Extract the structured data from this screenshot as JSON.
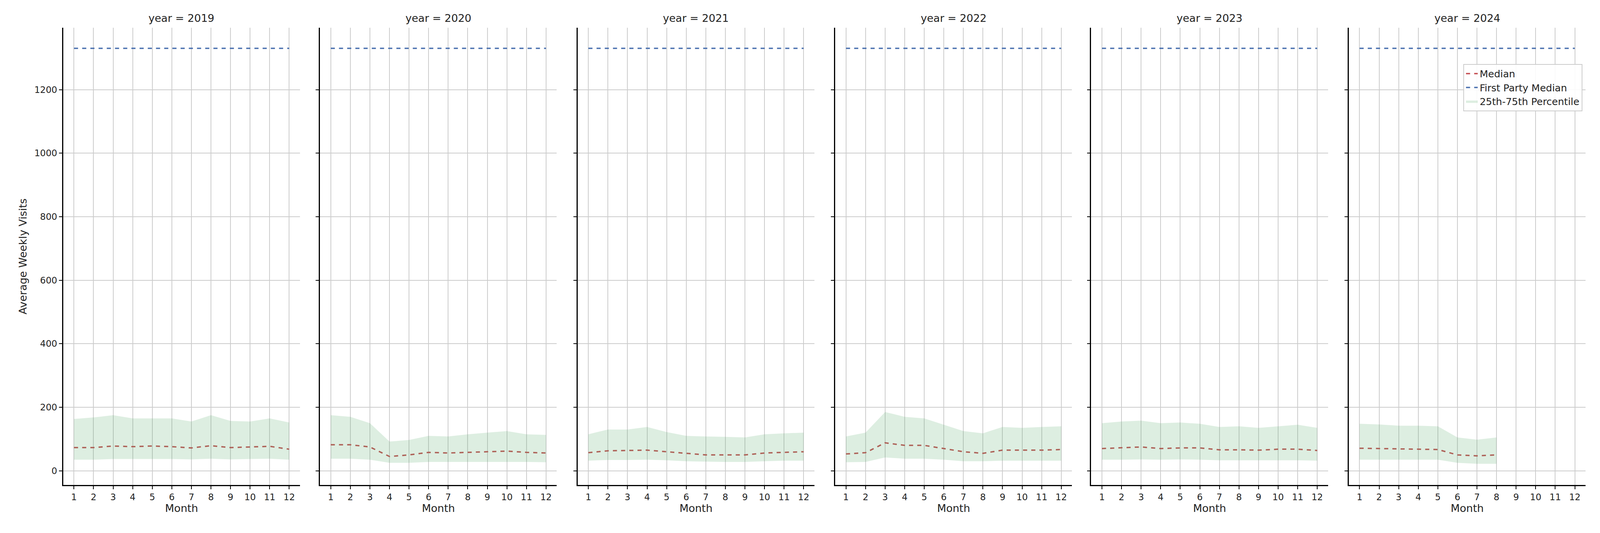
{
  "chart_data": [
    {
      "type": "line",
      "title": "year = 2019",
      "x_label": "Month",
      "y_label": "Average Weekly Visits",
      "x": [
        1,
        2,
        3,
        4,
        5,
        6,
        7,
        8,
        9,
        10,
        11,
        12
      ],
      "xlim": [
        0.45,
        12.55
      ],
      "xticks": [
        1,
        2,
        3,
        4,
        5,
        6,
        7,
        8,
        9,
        10,
        11,
        12
      ],
      "ylim": [
        -45,
        1395
      ],
      "yticks": [
        0,
        200,
        400,
        600,
        800,
        1000,
        1200
      ],
      "grid": true,
      "series": [
        {
          "name": "Median",
          "color": "#c44e52",
          "line_style": "dashed",
          "values": [
            73,
            73,
            78,
            76,
            78,
            76,
            72,
            79,
            73,
            75,
            77,
            68
          ]
        },
        {
          "name": "First Party Median",
          "color": "#4c72b0",
          "line_style": "dashed",
          "values": [
            1330,
            1330,
            1330,
            1330,
            1330,
            1330,
            1330,
            1330,
            1330,
            1330,
            1330,
            1330
          ]
        },
        {
          "name": "25th-75th Percentile",
          "type": "band",
          "color": "#55a868",
          "lower": [
            35,
            35,
            37,
            37,
            37,
            37,
            36,
            38,
            36,
            37,
            38,
            35
          ],
          "upper": [
            163,
            168,
            175,
            165,
            165,
            165,
            155,
            175,
            157,
            155,
            165,
            152
          ]
        }
      ]
    },
    {
      "type": "line",
      "title": "year = 2020",
      "x_label": "Month",
      "tick_labels": "x",
      "x": [
        1,
        2,
        3,
        4,
        5,
        6,
        7,
        8,
        9,
        10,
        11,
        12
      ],
      "xlim": [
        0.45,
        12.55
      ],
      "xticks": [
        1,
        2,
        3,
        4,
        5,
        6,
        7,
        8,
        9,
        10,
        11,
        12
      ],
      "ylim": [
        -45,
        1395
      ],
      "yticks": [
        0,
        200,
        400,
        600,
        800,
        1000,
        1200
      ],
      "grid": true,
      "series": [
        {
          "name": "Median",
          "color": "#c44e52",
          "line_style": "dashed",
          "values": [
            82,
            82,
            75,
            45,
            50,
            58,
            56,
            58,
            60,
            62,
            58,
            56
          ]
        },
        {
          "name": "First Party Median",
          "color": "#4c72b0",
          "line_style": "dashed",
          "values": [
            1330,
            1330,
            1330,
            1330,
            1330,
            1330,
            1330,
            1330,
            1330,
            1330,
            1330,
            1330
          ]
        },
        {
          "name": "25th-75th Percentile",
          "type": "band",
          "color": "#55a868",
          "lower": [
            38,
            38,
            35,
            25,
            25,
            28,
            28,
            28,
            28,
            28,
            28,
            27
          ],
          "upper": [
            175,
            170,
            150,
            92,
            97,
            110,
            108,
            115,
            120,
            125,
            115,
            113
          ]
        }
      ]
    },
    {
      "type": "line",
      "title": "year = 2021",
      "x_label": "Month",
      "tick_labels": "x",
      "x": [
        1,
        2,
        3,
        4,
        5,
        6,
        7,
        8,
        9,
        10,
        11,
        12
      ],
      "xlim": [
        0.45,
        12.55
      ],
      "xticks": [
        1,
        2,
        3,
        4,
        5,
        6,
        7,
        8,
        9,
        10,
        11,
        12
      ],
      "ylim": [
        -45,
        1395
      ],
      "yticks": [
        0,
        200,
        400,
        600,
        800,
        1000,
        1200
      ],
      "grid": true,
      "series": [
        {
          "name": "Median",
          "color": "#c44e52",
          "line_style": "dashed",
          "values": [
            57,
            63,
            64,
            65,
            60,
            55,
            50,
            50,
            50,
            56,
            58,
            60
          ]
        },
        {
          "name": "First Party Median",
          "color": "#4c72b0",
          "line_style": "dashed",
          "values": [
            1330,
            1330,
            1330,
            1330,
            1330,
            1330,
            1330,
            1330,
            1330,
            1330,
            1330,
            1330
          ]
        },
        {
          "name": "25th-75th Percentile",
          "type": "band",
          "color": "#55a868",
          "lower": [
            32,
            34,
            34,
            35,
            33,
            30,
            29,
            28,
            28,
            30,
            32,
            32
          ],
          "upper": [
            115,
            130,
            130,
            138,
            122,
            110,
            108,
            107,
            105,
            115,
            118,
            120
          ]
        }
      ]
    },
    {
      "type": "line",
      "title": "year = 2022",
      "x_label": "Month",
      "tick_labels": "x",
      "x": [
        1,
        2,
        3,
        4,
        5,
        6,
        7,
        8,
        9,
        10,
        11,
        12
      ],
      "xlim": [
        0.45,
        12.55
      ],
      "xticks": [
        1,
        2,
        3,
        4,
        5,
        6,
        7,
        8,
        9,
        10,
        11,
        12
      ],
      "ylim": [
        -45,
        1395
      ],
      "yticks": [
        0,
        200,
        400,
        600,
        800,
        1000,
        1200
      ],
      "grid": true,
      "series": [
        {
          "name": "Median",
          "color": "#c44e52",
          "line_style": "dashed",
          "values": [
            53,
            57,
            88,
            80,
            80,
            70,
            60,
            55,
            65,
            65,
            65,
            67
          ]
        },
        {
          "name": "First Party Median",
          "color": "#4c72b0",
          "line_style": "dashed",
          "values": [
            1330,
            1330,
            1330,
            1330,
            1330,
            1330,
            1330,
            1330,
            1330,
            1330,
            1330,
            1330
          ]
        },
        {
          "name": "25th-75th Percentile",
          "type": "band",
          "color": "#55a868",
          "lower": [
            27,
            28,
            42,
            38,
            38,
            35,
            30,
            30,
            32,
            32,
            32,
            32
          ],
          "upper": [
            108,
            120,
            185,
            170,
            165,
            145,
            125,
            118,
            138,
            135,
            138,
            140
          ]
        }
      ]
    },
    {
      "type": "line",
      "title": "year = 2023",
      "x_label": "Month",
      "tick_labels": "x",
      "x": [
        1,
        2,
        3,
        4,
        5,
        6,
        7,
        8,
        9,
        10,
        11,
        12
      ],
      "xlim": [
        0.45,
        12.55
      ],
      "xticks": [
        1,
        2,
        3,
        4,
        5,
        6,
        7,
        8,
        9,
        10,
        11,
        12
      ],
      "ylim": [
        -45,
        1395
      ],
      "yticks": [
        0,
        200,
        400,
        600,
        800,
        1000,
        1200
      ],
      "grid": true,
      "series": [
        {
          "name": "Median",
          "color": "#c44e52",
          "line_style": "dashed",
          "values": [
            70,
            72,
            75,
            70,
            72,
            72,
            66,
            66,
            65,
            68,
            68,
            64
          ]
        },
        {
          "name": "First Party Median",
          "color": "#4c72b0",
          "line_style": "dashed",
          "values": [
            1330,
            1330,
            1330,
            1330,
            1330,
            1330,
            1330,
            1330,
            1330,
            1330,
            1330,
            1330
          ]
        },
        {
          "name": "25th-75th Percentile",
          "type": "band",
          "color": "#55a868",
          "lower": [
            35,
            35,
            36,
            35,
            36,
            35,
            33,
            33,
            33,
            33,
            33,
            32
          ],
          "upper": [
            150,
            155,
            158,
            150,
            152,
            148,
            138,
            140,
            135,
            140,
            145,
            135
          ]
        }
      ]
    },
    {
      "type": "line",
      "title": "year = 2024",
      "x_label": "Month",
      "tick_labels": "x",
      "legend": "upper right",
      "x": [
        1,
        2,
        3,
        4,
        5,
        6,
        7,
        8,
        9,
        10,
        11,
        12
      ],
      "xlim": [
        0.45,
        12.55
      ],
      "xticks": [
        1,
        2,
        3,
        4,
        5,
        6,
        7,
        8,
        9,
        10,
        11,
        12
      ],
      "ylim": [
        -45,
        1395
      ],
      "yticks": [
        0,
        200,
        400,
        600,
        800,
        1000,
        1200
      ],
      "grid": true,
      "series": [
        {
          "name": "Median",
          "color": "#c44e52",
          "line_style": "dashed",
          "values": [
            71,
            70,
            69,
            68,
            67,
            50,
            47,
            50,
            null,
            null,
            null,
            null
          ]
        },
        {
          "name": "First Party Median",
          "color": "#4c72b0",
          "line_style": "dashed",
          "values": [
            1330,
            1330,
            1330,
            1330,
            1330,
            1330,
            1330,
            1330,
            1330,
            1330,
            1330,
            1330
          ]
        },
        {
          "name": "25th-75th Percentile",
          "type": "band",
          "color": "#55a868",
          "lower": [
            35,
            35,
            35,
            35,
            35,
            25,
            22,
            22,
            null,
            null,
            null,
            null
          ],
          "upper": [
            148,
            146,
            142,
            142,
            140,
            105,
            98,
            105,
            null,
            null,
            null,
            null
          ]
        }
      ]
    }
  ]
}
